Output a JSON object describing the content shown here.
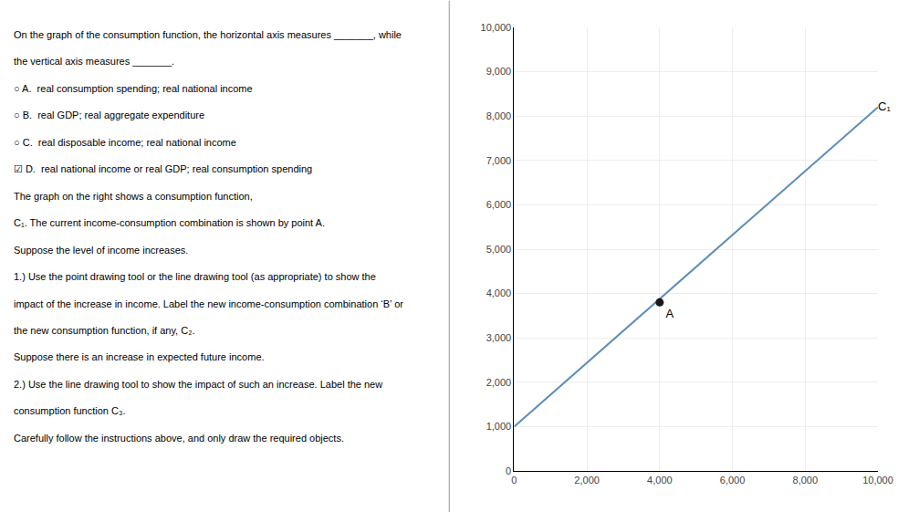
{
  "chart_data": {
    "type": "line",
    "xlim": [
      0,
      10000
    ],
    "ylim": [
      0,
      10000
    ],
    "xticks": [
      0,
      {
        "value": 2000,
        "label": "2,000"
      },
      {
        "value": 4000,
        "label": "4,000"
      },
      {
        "value": 6000,
        "label": "6,000"
      },
      {
        "value": 8000,
        "label": "8,000"
      },
      {
        "value": 10000,
        "label": "10,000"
      }
    ],
    "yticks": [
      0,
      {
        "value": 1000,
        "label": "1,000"
      },
      {
        "value": 2000,
        "label": "2,000"
      },
      {
        "value": 3000,
        "label": "3,000"
      },
      {
        "value": 4000,
        "label": "4,000"
      },
      {
        "value": 5000,
        "label": "5,000"
      },
      {
        "value": 6000,
        "label": "6,000"
      },
      {
        "value": 7000,
        "label": "7,000"
      },
      {
        "value": 8000,
        "label": "8,000"
      },
      {
        "value": 9000,
        "label": "9,000"
      },
      {
        "value": 10000,
        "label": "10,000"
      }
    ],
    "grid": true,
    "series": [
      {
        "name": "C₁",
        "type": "line",
        "color": "#5b8db8",
        "x": [
          0,
          10000
        ],
        "values": [
          1000,
          8200
        ]
      },
      {
        "name": "A",
        "type": "scatter",
        "color": "#1a1a1a",
        "x": [
          4000
        ],
        "values": [
          3800
        ]
      }
    ],
    "annotations": [
      "On the graph of the consumption function, the horizontal axis measures _______, while",
      "the vertical axis measures _______.",
      "○ A.  real consumption spending; real national income",
      "○ B.  real GDP; real aggregate expenditure",
      "○ C.  real disposable income; real national income",
      "☑ D.  real national income or real GDP; real consumption spending",
      "The graph on the right shows a consumption function,",
      "C₁. The current income-consumption combination is shown by point A.",
      "Suppose the level of income increases.",
      "1.) Use the point drawing tool or the line drawing tool (as appropriate) to show the",
      "impact of the increase in income. Label the new income-consumption combination ‘B’ or",
      "the new consumption function, if any, C₂.",
      "Suppose there is an increase in expected future income.",
      "2.) Use the line drawing tool to show the impact of such an increase. Label the new",
      "consumption function C₃.",
      "Carefully follow the instructions above, and only draw the required objects."
    ]
  }
}
